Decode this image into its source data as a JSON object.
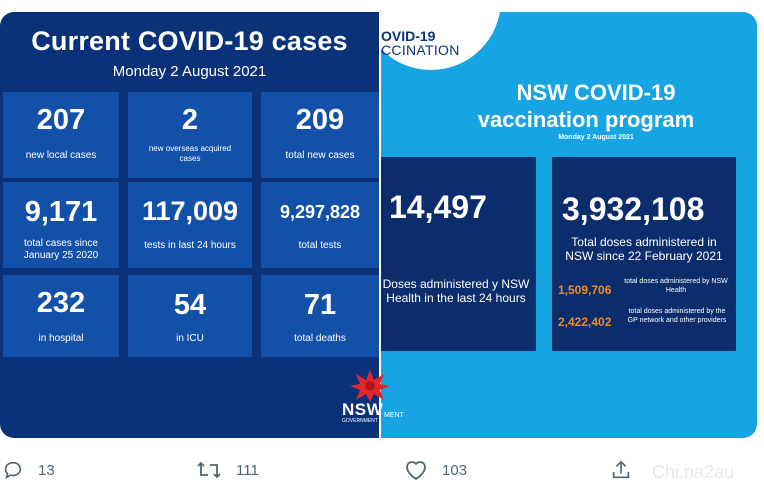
{
  "left_panel": {
    "title": "Current COVID-19 cases",
    "date": "Monday 2 August 2021",
    "tiles": [
      {
        "value": "207",
        "label": "new local cases"
      },
      {
        "value": "2",
        "label": "new overseas acquired cases"
      },
      {
        "value": "209",
        "label": "total new cases"
      },
      {
        "value": "9,171",
        "label": "total cases since January 25 2020"
      },
      {
        "value": "117,009",
        "label": "tests in last 24 hours"
      },
      {
        "value": "9,297,828",
        "label": "total tests"
      },
      {
        "value": "232",
        "label": "in hospital"
      },
      {
        "value": "54",
        "label": "in ICU"
      },
      {
        "value": "71",
        "label": "total deaths"
      }
    ],
    "logo_text": "NSW",
    "logo_subtext": "GOVERNMENT"
  },
  "right_panel": {
    "badge_line1": "OVID-19",
    "badge_line2": "CCINATION",
    "title_line1": "NSW COVID-19",
    "title_line2": "vaccination program",
    "date": "Monday 2 August 2021",
    "box1": {
      "value": "14,497",
      "description": "Doses administered y NSW Health in the last 24 hours"
    },
    "box2": {
      "value": "3,932,108",
      "description": "Total doses administered in NSW since 22 February 2021",
      "sub1_value": "1,509,706",
      "sub1_label": "total doses administered by NSW Health",
      "sub2_value": "2,422,402",
      "sub2_label": "total doses administered by the GP network and other providers"
    },
    "logo_fragment": "MENT"
  },
  "actions": {
    "reply_count": "13",
    "retweet_count": "111",
    "like_count": "103"
  },
  "watermark": "Chi.na2au",
  "colors": {
    "left_bg": "#0b3278",
    "tile_bg": "#1350a8",
    "right_bg": "#17a4e2",
    "box_bg": "#0b2d6b",
    "accent_orange": "#f08a2a",
    "waratah_red": "#e3262e"
  }
}
